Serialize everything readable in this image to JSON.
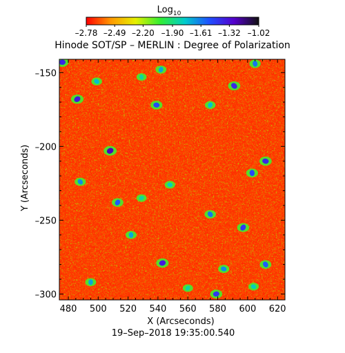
{
  "chart_data": {
    "type": "heatmap",
    "title": "Hinode SOT/SP – MERLIN : Degree of Polarization",
    "subtitle": "19–Sep–2018 19:35:00.540",
    "xlabel": "X (Arcseconds)",
    "ylabel": "Y (Arcseconds)",
    "xlim": [
      474,
      625
    ],
    "ylim": [
      -304,
      -141
    ],
    "x_ticks": [
      480,
      500,
      520,
      540,
      560,
      580,
      600,
      620
    ],
    "y_ticks": [
      -150,
      -200,
      -250,
      -300
    ],
    "x_tick_labels": [
      "480",
      "500",
      "520",
      "540",
      "560",
      "580",
      "600",
      "620"
    ],
    "y_tick_labels": [
      "–150",
      "–200",
      "–250",
      "–300"
    ],
    "colorbar": {
      "label_base": "Log",
      "label_sub": "10",
      "range": [
        -2.78,
        -1.02
      ],
      "ticks": [
        -2.78,
        -2.49,
        -2.2,
        -1.9,
        -1.61,
        -1.32,
        -1.02
      ],
      "tick_labels": [
        "–2.78",
        "–2.49",
        "–2.20",
        "–1.90",
        "–1.61",
        "–1.32",
        "–1.02"
      ],
      "colors": [
        "#ff0000",
        "#ff9900",
        "#e6f000",
        "#33ee33",
        "#00cccc",
        "#1f4fff",
        "#5500cc",
        "#111111"
      ]
    },
    "background_level": -2.65,
    "features": [
      {
        "x": 476,
        "y": -143,
        "level": -1.4
      },
      {
        "x": 499,
        "y": -156,
        "level": -1.75
      },
      {
        "x": 529,
        "y": -153,
        "level": -1.85
      },
      {
        "x": 542,
        "y": -148,
        "level": -1.7
      },
      {
        "x": 486,
        "y": -168,
        "level": -1.35
      },
      {
        "x": 539,
        "y": -172,
        "level": -1.5
      },
      {
        "x": 591,
        "y": -159,
        "level": -1.4
      },
      {
        "x": 605,
        "y": -144,
        "level": -1.6
      },
      {
        "x": 575,
        "y": -172,
        "level": -1.75
      },
      {
        "x": 508,
        "y": -203,
        "level": -1.25
      },
      {
        "x": 612,
        "y": -210,
        "level": -1.4
      },
      {
        "x": 488,
        "y": -224,
        "level": -1.65
      },
      {
        "x": 603,
        "y": -218,
        "level": -1.5
      },
      {
        "x": 513,
        "y": -238,
        "level": -1.55
      },
      {
        "x": 529,
        "y": -235,
        "level": -1.85
      },
      {
        "x": 548,
        "y": -226,
        "level": -1.8
      },
      {
        "x": 575,
        "y": -246,
        "level": -1.6
      },
      {
        "x": 522,
        "y": -260,
        "level": -1.7
      },
      {
        "x": 597,
        "y": -255,
        "level": -1.45
      },
      {
        "x": 543,
        "y": -279,
        "level": -1.35
      },
      {
        "x": 584,
        "y": -283,
        "level": -1.65
      },
      {
        "x": 612,
        "y": -280,
        "level": -1.55
      },
      {
        "x": 495,
        "y": -292,
        "level": -1.7
      },
      {
        "x": 560,
        "y": -296,
        "level": -1.85
      },
      {
        "x": 579,
        "y": -300,
        "level": -1.45
      },
      {
        "x": 604,
        "y": -295,
        "level": -1.8
      }
    ]
  }
}
